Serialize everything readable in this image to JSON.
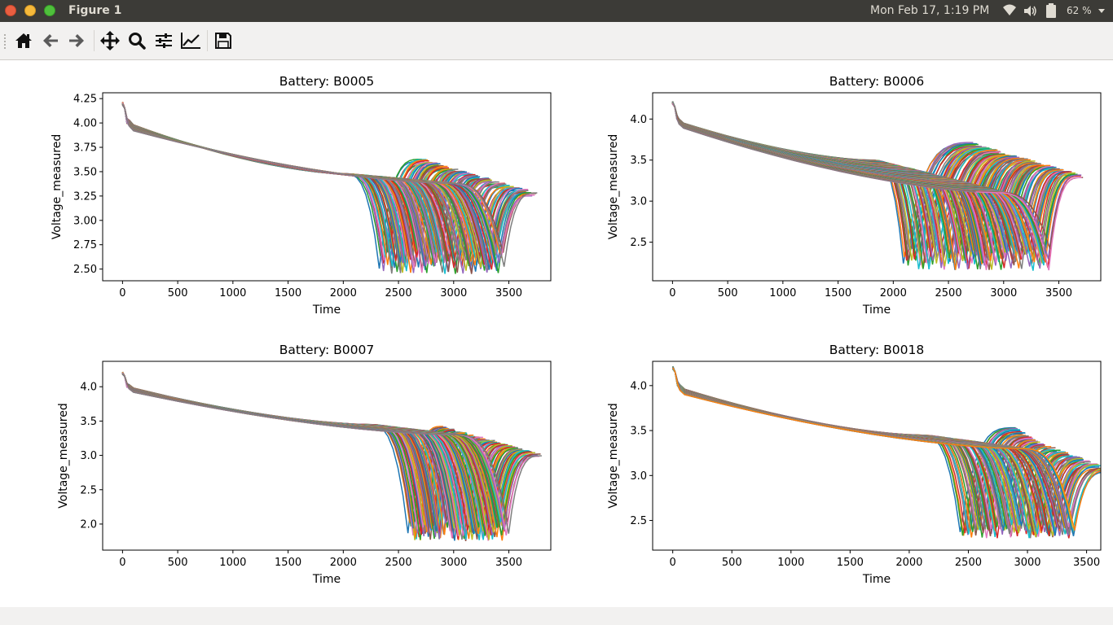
{
  "window": {
    "title": "Figure 1"
  },
  "system_tray": {
    "datetime": "Mon Feb 17,  1:19 PM",
    "battery_percent": "62 %",
    "icons": [
      "wifi-icon",
      "volume-icon",
      "battery-icon",
      "chevron-down-icon"
    ]
  },
  "toolbar": {
    "buttons": [
      {
        "name": "home",
        "icon": "home-icon"
      },
      {
        "name": "back",
        "icon": "arrow-left-icon"
      },
      {
        "name": "forward",
        "icon": "arrow-right-icon"
      },
      {
        "name": "pan",
        "icon": "move-icon"
      },
      {
        "name": "zoom",
        "icon": "magnifier-icon"
      },
      {
        "name": "subplots",
        "icon": "sliders-icon"
      },
      {
        "name": "edit-axis",
        "icon": "line-chart-icon"
      },
      {
        "name": "save",
        "icon": "floppy-disk-icon"
      }
    ]
  },
  "chart_data": [
    {
      "type": "line",
      "title": "Battery: B0005",
      "xlabel": "Time",
      "ylabel": "Voltage_measured",
      "xlim": [
        -180,
        3880
      ],
      "ylim": [
        2.38,
        4.31
      ],
      "xticks": [
        0,
        500,
        1000,
        1500,
        2000,
        2500,
        3000,
        3500
      ],
      "yticks": [
        2.5,
        2.75,
        3.0,
        3.25,
        3.5,
        3.75,
        4.0,
        4.25
      ],
      "ytick_format": 2,
      "series_count": 168,
      "series_summary": {
        "start_voltage": 4.2,
        "plateau_start_at_100": 3.95,
        "plateau_end_range": [
          3.38,
          3.48
        ],
        "cutoff_time_range": [
          2330,
          3450
        ],
        "cutoff_voltage_range": [
          2.45,
          2.7
        ],
        "recovery_voltage_range": [
          3.27,
          3.62
        ],
        "end_time_range": [
          2700,
          3700
        ]
      }
    },
    {
      "type": "line",
      "title": "Battery: B0006",
      "xlabel": "Time",
      "ylabel": "Voltage_measured",
      "xlim": [
        -180,
        3880
      ],
      "ylim": [
        2.03,
        4.32
      ],
      "xticks": [
        0,
        500,
        1000,
        1500,
        2000,
        2500,
        3000,
        3500
      ],
      "yticks": [
        2.5,
        3.0,
        3.5,
        4.0
      ],
      "ytick_format": 1,
      "series_count": 168,
      "series_summary": {
        "start_voltage": 4.2,
        "plateau_start_at_100": 3.92,
        "plateau_end_range": [
          3.1,
          3.5
        ],
        "cutoff_time_range": [
          2100,
          3420
        ],
        "cutoff_voltage_range": [
          2.15,
          2.45
        ],
        "recovery_voltage_range": [
          3.3,
          3.7
        ],
        "end_time_range": [
          2700,
          3700
        ]
      }
    },
    {
      "type": "line",
      "title": "Battery: B0007",
      "xlabel": "Time",
      "ylabel": "Voltage_measured",
      "xlim": [
        -180,
        3880
      ],
      "ylim": [
        1.62,
        4.37
      ],
      "xticks": [
        0,
        500,
        1000,
        1500,
        2000,
        2500,
        3000,
        3500
      ],
      "yticks": [
        2.0,
        2.5,
        3.0,
        3.5,
        4.0
      ],
      "ytick_format": 1,
      "series_count": 168,
      "series_summary": {
        "start_voltage": 4.2,
        "plateau_start_at_100": 3.95,
        "plateau_end_range": [
          3.3,
          3.45
        ],
        "cutoff_time_range": [
          2600,
          3480
        ],
        "cutoff_voltage_range": [
          1.75,
          2.05
        ],
        "recovery_voltage_range": [
          3.0,
          3.4
        ],
        "end_time_range": [
          2900,
          3700
        ]
      }
    },
    {
      "type": "line",
      "title": "Battery: B0018",
      "xlabel": "Time",
      "ylabel": "Voltage_measured",
      "xlim": [
        -170,
        3620
      ],
      "ylim": [
        2.17,
        4.27
      ],
      "xticks": [
        0,
        500,
        1000,
        1500,
        2000,
        2500,
        3000,
        3500
      ],
      "yticks": [
        2.5,
        3.0,
        3.5,
        4.0
      ],
      "ytick_format": 1,
      "series_count": 132,
      "series_summary": {
        "start_voltage": 4.2,
        "plateau_start_at_100": 3.93,
        "plateau_end_range": [
          3.3,
          3.45
        ],
        "cutoff_time_range": [
          2450,
          3400
        ],
        "cutoff_voltage_range": [
          2.3,
          2.45
        ],
        "recovery_voltage_range": [
          3.05,
          3.52
        ],
        "end_time_range": [
          2900,
          3440
        ]
      }
    }
  ]
}
